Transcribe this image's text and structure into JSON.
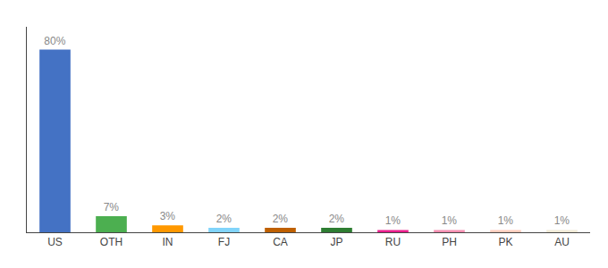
{
  "chart_data": {
    "type": "bar",
    "categories": [
      "US",
      "OTH",
      "IN",
      "FJ",
      "CA",
      "JP",
      "RU",
      "PH",
      "PK",
      "AU"
    ],
    "values": [
      80,
      7,
      3,
      2,
      2,
      2,
      1,
      1,
      1,
      1
    ],
    "value_labels": [
      "80%",
      "7%",
      "3%",
      "2%",
      "2%",
      "2%",
      "1%",
      "1%",
      "1%",
      "1%"
    ],
    "colors": [
      "#4472c4",
      "#4caf50",
      "#ff9800",
      "#81d4fa",
      "#bf6000",
      "#2e7d32",
      "#e91e8c",
      "#f48fb1",
      "#ffccbc",
      "#f0ead6"
    ],
    "ylim": [
      0,
      90
    ],
    "grid": false,
    "data_labels": true,
    "tick_labels": "x"
  }
}
